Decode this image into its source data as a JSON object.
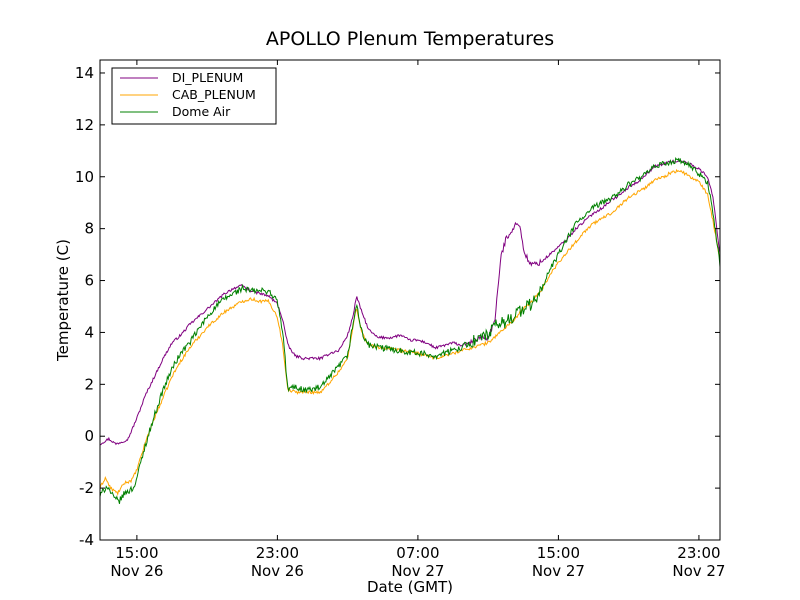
{
  "chart_data": {
    "type": "line",
    "title": "APOLLO Plenum Temperatures",
    "xlabel": "Date (GMT)",
    "ylabel": "Temperature (C)",
    "ylim": [
      -4,
      14.5
    ],
    "xlim_hours": [
      12.9,
      48.2
    ],
    "yticks": [
      {
        "value": -4,
        "label": "-4"
      },
      {
        "value": -2,
        "label": "-2"
      },
      {
        "value": 0,
        "label": "0"
      },
      {
        "value": 2,
        "label": "2"
      },
      {
        "value": 4,
        "label": "4"
      },
      {
        "value": 6,
        "label": "6"
      },
      {
        "value": 8,
        "label": "8"
      },
      {
        "value": 10,
        "label": "10"
      },
      {
        "value": 12,
        "label": "12"
      },
      {
        "value": 14,
        "label": "14"
      }
    ],
    "xticks": [
      {
        "hour": 15,
        "time": "15:00",
        "date": "Nov 26"
      },
      {
        "hour": 23,
        "time": "23:00",
        "date": "Nov 26"
      },
      {
        "hour": 31,
        "time": "07:00",
        "date": "Nov 27"
      },
      {
        "hour": 39,
        "time": "15:00",
        "date": "Nov 27"
      },
      {
        "hour": 47,
        "time": "23:00",
        "date": "Nov 27"
      }
    ],
    "legend_position": "top-left",
    "series": [
      {
        "name": "DI_PLENUM",
        "color": "#800080",
        "noise": 0.05,
        "points": [
          [
            12.9,
            -0.3
          ],
          [
            13.4,
            -0.1
          ],
          [
            13.8,
            -0.3
          ],
          [
            14.2,
            -0.2
          ],
          [
            14.5,
            -0.1
          ],
          [
            15.0,
            0.7
          ],
          [
            15.5,
            1.6
          ],
          [
            16.0,
            2.3
          ],
          [
            16.5,
            3.0
          ],
          [
            17.0,
            3.6
          ],
          [
            17.5,
            3.9
          ],
          [
            18.0,
            4.3
          ],
          [
            18.5,
            4.6
          ],
          [
            19.0,
            4.9
          ],
          [
            19.5,
            5.2
          ],
          [
            20.0,
            5.5
          ],
          [
            20.5,
            5.7
          ],
          [
            21.0,
            5.8
          ],
          [
            21.5,
            5.6
          ],
          [
            22.0,
            5.5
          ],
          [
            22.5,
            5.4
          ],
          [
            23.0,
            5.1
          ],
          [
            23.3,
            4.5
          ],
          [
            23.6,
            3.5
          ],
          [
            24.0,
            3.1
          ],
          [
            24.5,
            3.0
          ],
          [
            25.0,
            3.0
          ],
          [
            25.5,
            3.0
          ],
          [
            26.0,
            3.2
          ],
          [
            26.5,
            3.3
          ],
          [
            27.0,
            3.9
          ],
          [
            27.3,
            4.6
          ],
          [
            27.5,
            5.4
          ],
          [
            27.8,
            4.8
          ],
          [
            28.2,
            4.1
          ],
          [
            28.7,
            3.8
          ],
          [
            29.5,
            3.8
          ],
          [
            30.0,
            3.9
          ],
          [
            30.5,
            3.7
          ],
          [
            31.0,
            3.7
          ],
          [
            31.5,
            3.6
          ],
          [
            32.0,
            3.4
          ],
          [
            32.5,
            3.5
          ],
          [
            33.0,
            3.6
          ],
          [
            33.5,
            3.5
          ],
          [
            34.0,
            3.6
          ],
          [
            34.5,
            3.8
          ],
          [
            35.0,
            3.8
          ],
          [
            35.4,
            4.5
          ],
          [
            35.7,
            6.8
          ],
          [
            36.0,
            7.6
          ],
          [
            36.5,
            8.1
          ],
          [
            36.8,
            8.2
          ],
          [
            37.0,
            7.2
          ],
          [
            37.4,
            6.6
          ],
          [
            38.0,
            6.7
          ],
          [
            38.5,
            7.0
          ],
          [
            39.0,
            7.3
          ],
          [
            39.5,
            7.6
          ],
          [
            40.0,
            8.0
          ],
          [
            40.5,
            8.3
          ],
          [
            41.0,
            8.6
          ],
          [
            41.5,
            8.8
          ],
          [
            42.0,
            9.1
          ],
          [
            42.5,
            9.3
          ],
          [
            43.0,
            9.6
          ],
          [
            43.5,
            9.8
          ],
          [
            44.0,
            10.1
          ],
          [
            44.5,
            10.4
          ],
          [
            45.0,
            10.5
          ],
          [
            45.5,
            10.6
          ],
          [
            46.0,
            10.6
          ],
          [
            46.5,
            10.5
          ],
          [
            47.0,
            10.3
          ],
          [
            47.5,
            10.0
          ],
          [
            47.8,
            9.2
          ],
          [
            48.2,
            7.0
          ]
        ]
      },
      {
        "name": "CAB_PLENUM",
        "color": "#ffa500",
        "noise": 0.06,
        "points": [
          [
            12.9,
            -2.0
          ],
          [
            13.2,
            -1.6
          ],
          [
            13.5,
            -2.0
          ],
          [
            13.9,
            -2.2
          ],
          [
            14.3,
            -1.8
          ],
          [
            14.7,
            -1.7
          ],
          [
            15.0,
            -1.3
          ],
          [
            15.5,
            -0.2
          ],
          [
            16.0,
            0.7
          ],
          [
            16.5,
            1.5
          ],
          [
            17.0,
            2.3
          ],
          [
            17.5,
            2.9
          ],
          [
            18.0,
            3.4
          ],
          [
            18.5,
            3.8
          ],
          [
            19.0,
            4.2
          ],
          [
            19.5,
            4.5
          ],
          [
            20.0,
            4.8
          ],
          [
            20.5,
            5.0
          ],
          [
            21.0,
            5.2
          ],
          [
            21.5,
            5.3
          ],
          [
            22.0,
            5.2
          ],
          [
            22.5,
            5.2
          ],
          [
            23.0,
            4.6
          ],
          [
            23.3,
            3.5
          ],
          [
            23.6,
            1.8
          ],
          [
            24.0,
            1.7
          ],
          [
            24.5,
            1.7
          ],
          [
            25.0,
            1.7
          ],
          [
            25.5,
            1.7
          ],
          [
            26.0,
            2.1
          ],
          [
            26.5,
            2.5
          ],
          [
            27.0,
            3.0
          ],
          [
            27.3,
            4.2
          ],
          [
            27.5,
            5.0
          ],
          [
            27.8,
            4.0
          ],
          [
            28.2,
            3.5
          ],
          [
            29.0,
            3.4
          ],
          [
            30.0,
            3.3
          ],
          [
            31.0,
            3.2
          ],
          [
            32.0,
            3.0
          ],
          [
            33.0,
            3.2
          ],
          [
            34.0,
            3.4
          ],
          [
            35.0,
            3.6
          ],
          [
            35.5,
            3.9
          ],
          [
            36.0,
            4.2
          ],
          [
            36.5,
            4.5
          ],
          [
            37.0,
            4.9
          ],
          [
            37.5,
            5.2
          ],
          [
            38.0,
            5.6
          ],
          [
            38.5,
            6.2
          ],
          [
            39.0,
            6.7
          ],
          [
            39.5,
            7.1
          ],
          [
            40.0,
            7.5
          ],
          [
            40.5,
            7.9
          ],
          [
            41.0,
            8.2
          ],
          [
            41.5,
            8.4
          ],
          [
            42.0,
            8.6
          ],
          [
            42.5,
            8.9
          ],
          [
            43.0,
            9.2
          ],
          [
            43.5,
            9.4
          ],
          [
            44.0,
            9.6
          ],
          [
            44.5,
            9.9
          ],
          [
            45.0,
            10.0
          ],
          [
            45.5,
            10.2
          ],
          [
            46.0,
            10.2
          ],
          [
            46.5,
            10.0
          ],
          [
            47.0,
            9.8
          ],
          [
            47.5,
            9.3
          ],
          [
            47.8,
            8.3
          ],
          [
            48.2,
            6.8
          ]
        ]
      },
      {
        "name": "Dome Air",
        "color": "#008000",
        "noise": 0.12,
        "points": [
          [
            12.9,
            -2.3
          ],
          [
            13.3,
            -1.9
          ],
          [
            13.7,
            -2.4
          ],
          [
            14.0,
            -2.5
          ],
          [
            14.3,
            -2.2
          ],
          [
            14.8,
            -2.0
          ],
          [
            15.0,
            -1.6
          ],
          [
            15.5,
            -0.3
          ],
          [
            16.0,
            0.8
          ],
          [
            16.5,
            1.8
          ],
          [
            17.0,
            2.6
          ],
          [
            17.5,
            3.2
          ],
          [
            18.0,
            3.6
          ],
          [
            18.5,
            4.1
          ],
          [
            19.0,
            4.6
          ],
          [
            19.5,
            5.0
          ],
          [
            20.0,
            5.3
          ],
          [
            20.5,
            5.5
          ],
          [
            21.0,
            5.7
          ],
          [
            21.5,
            5.6
          ],
          [
            22.0,
            5.6
          ],
          [
            22.5,
            5.6
          ],
          [
            23.0,
            5.2
          ],
          [
            23.3,
            4.0
          ],
          [
            23.6,
            1.8
          ],
          [
            24.0,
            1.9
          ],
          [
            24.5,
            1.8
          ],
          [
            25.0,
            1.8
          ],
          [
            25.5,
            1.9
          ],
          [
            26.0,
            2.3
          ],
          [
            26.5,
            2.7
          ],
          [
            27.0,
            3.1
          ],
          [
            27.3,
            4.3
          ],
          [
            27.5,
            5.1
          ],
          [
            27.8,
            4.0
          ],
          [
            28.2,
            3.5
          ],
          [
            29.0,
            3.4
          ],
          [
            30.0,
            3.3
          ],
          [
            31.0,
            3.2
          ],
          [
            32.0,
            3.1
          ],
          [
            33.0,
            3.3
          ],
          [
            34.0,
            3.6
          ],
          [
            35.0,
            3.9
          ],
          [
            35.5,
            4.3
          ],
          [
            36.0,
            4.4
          ],
          [
            36.5,
            4.7
          ],
          [
            37.0,
            4.9
          ],
          [
            37.5,
            5.1
          ],
          [
            38.0,
            5.6
          ],
          [
            38.5,
            6.4
          ],
          [
            39.0,
            7.0
          ],
          [
            39.5,
            7.6
          ],
          [
            40.0,
            8.2
          ],
          [
            40.5,
            8.5
          ],
          [
            41.0,
            8.8
          ],
          [
            41.5,
            9.0
          ],
          [
            42.0,
            9.2
          ],
          [
            42.5,
            9.4
          ],
          [
            43.0,
            9.7
          ],
          [
            43.5,
            9.9
          ],
          [
            44.0,
            10.1
          ],
          [
            44.5,
            10.4
          ],
          [
            45.0,
            10.5
          ],
          [
            45.5,
            10.6
          ],
          [
            46.0,
            10.6
          ],
          [
            46.5,
            10.4
          ],
          [
            47.0,
            10.1
          ],
          [
            47.5,
            9.8
          ],
          [
            47.8,
            8.6
          ],
          [
            48.2,
            6.6
          ]
        ]
      }
    ]
  }
}
